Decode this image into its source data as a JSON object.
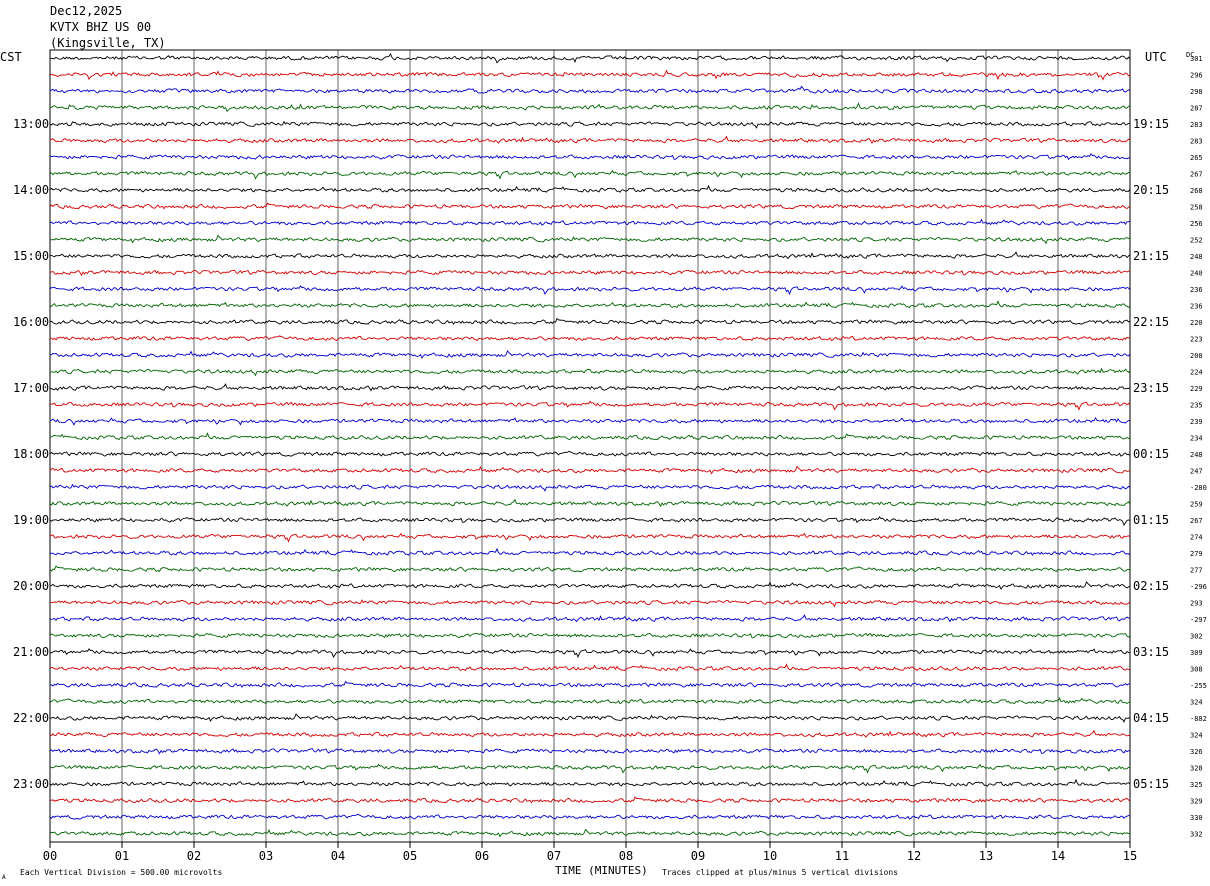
{
  "header": {
    "date": "Dec12,2025",
    "station": "KVTX BHZ US 00",
    "location": "(Kingsville, TX)"
  },
  "left_zone_label": "CST",
  "right_zone_label": "UTC",
  "dc_label": "DC",
  "footer": {
    "scale_note": "Each Vertical Division =  500.00 microvolts",
    "xlabel": "TIME (MINUTES)",
    "clip_note": "Traces clipped at plus/minus 5 vertical divisions",
    "corner_mark": "A"
  },
  "colors": {
    "cycle": [
      "#000000",
      "#d40000",
      "#0000cc",
      "#006400"
    ],
    "grid": "#000000"
  },
  "chart_data": {
    "type": "line",
    "title": "KVTX BHZ US 00",
    "xlabel": "TIME (MINUTES)",
    "x_ticks": [
      "00",
      "01",
      "02",
      "03",
      "04",
      "05",
      "06",
      "07",
      "08",
      "09",
      "10",
      "11",
      "12",
      "13",
      "14",
      "15"
    ],
    "xlim": [
      0,
      15
    ],
    "trace_count": 48,
    "minutes_per_trace": 15,
    "left_hour_labels": [
      {
        "trace": 4,
        "label": "13:00"
      },
      {
        "trace": 8,
        "label": "14:00"
      },
      {
        "trace": 12,
        "label": "15:00"
      },
      {
        "trace": 16,
        "label": "16:00"
      },
      {
        "trace": 20,
        "label": "17:00"
      },
      {
        "trace": 24,
        "label": "18:00"
      },
      {
        "trace": 28,
        "label": "19:00"
      },
      {
        "trace": 32,
        "label": "20:00"
      },
      {
        "trace": 36,
        "label": "21:00"
      },
      {
        "trace": 40,
        "label": "22:00"
      },
      {
        "trace": 44,
        "label": "23:00"
      }
    ],
    "right_hour_labels": [
      {
        "trace": 4,
        "label": "19:15"
      },
      {
        "trace": 8,
        "label": "20:15"
      },
      {
        "trace": 12,
        "label": "21:15"
      },
      {
        "trace": 16,
        "label": "22:15"
      },
      {
        "trace": 20,
        "label": "23:15"
      },
      {
        "trace": 24,
        "label": "00:15"
      },
      {
        "trace": 28,
        "label": "01:15"
      },
      {
        "trace": 32,
        "label": "02:15"
      },
      {
        "trace": 36,
        "label": "03:15"
      },
      {
        "trace": 40,
        "label": "04:15"
      },
      {
        "trace": 44,
        "label": "05:15"
      }
    ],
    "dc_offsets": [
      "301",
      "296",
      "298",
      "287",
      "283",
      "283",
      "265",
      "267",
      "268",
      "258",
      "256",
      "252",
      "248",
      "240",
      "236",
      "236",
      "220",
      "223",
      "208",
      "224",
      "229",
      "235",
      "239",
      "234",
      "248",
      "247",
      "-280",
      "259",
      "267",
      "274",
      "279",
      "277",
      "-296",
      "293",
      "-297",
      "302",
      "309",
      "308",
      "-255",
      "324",
      "-882",
      "324",
      "326",
      "328",
      "325",
      "329",
      "330",
      "332"
    ]
  }
}
